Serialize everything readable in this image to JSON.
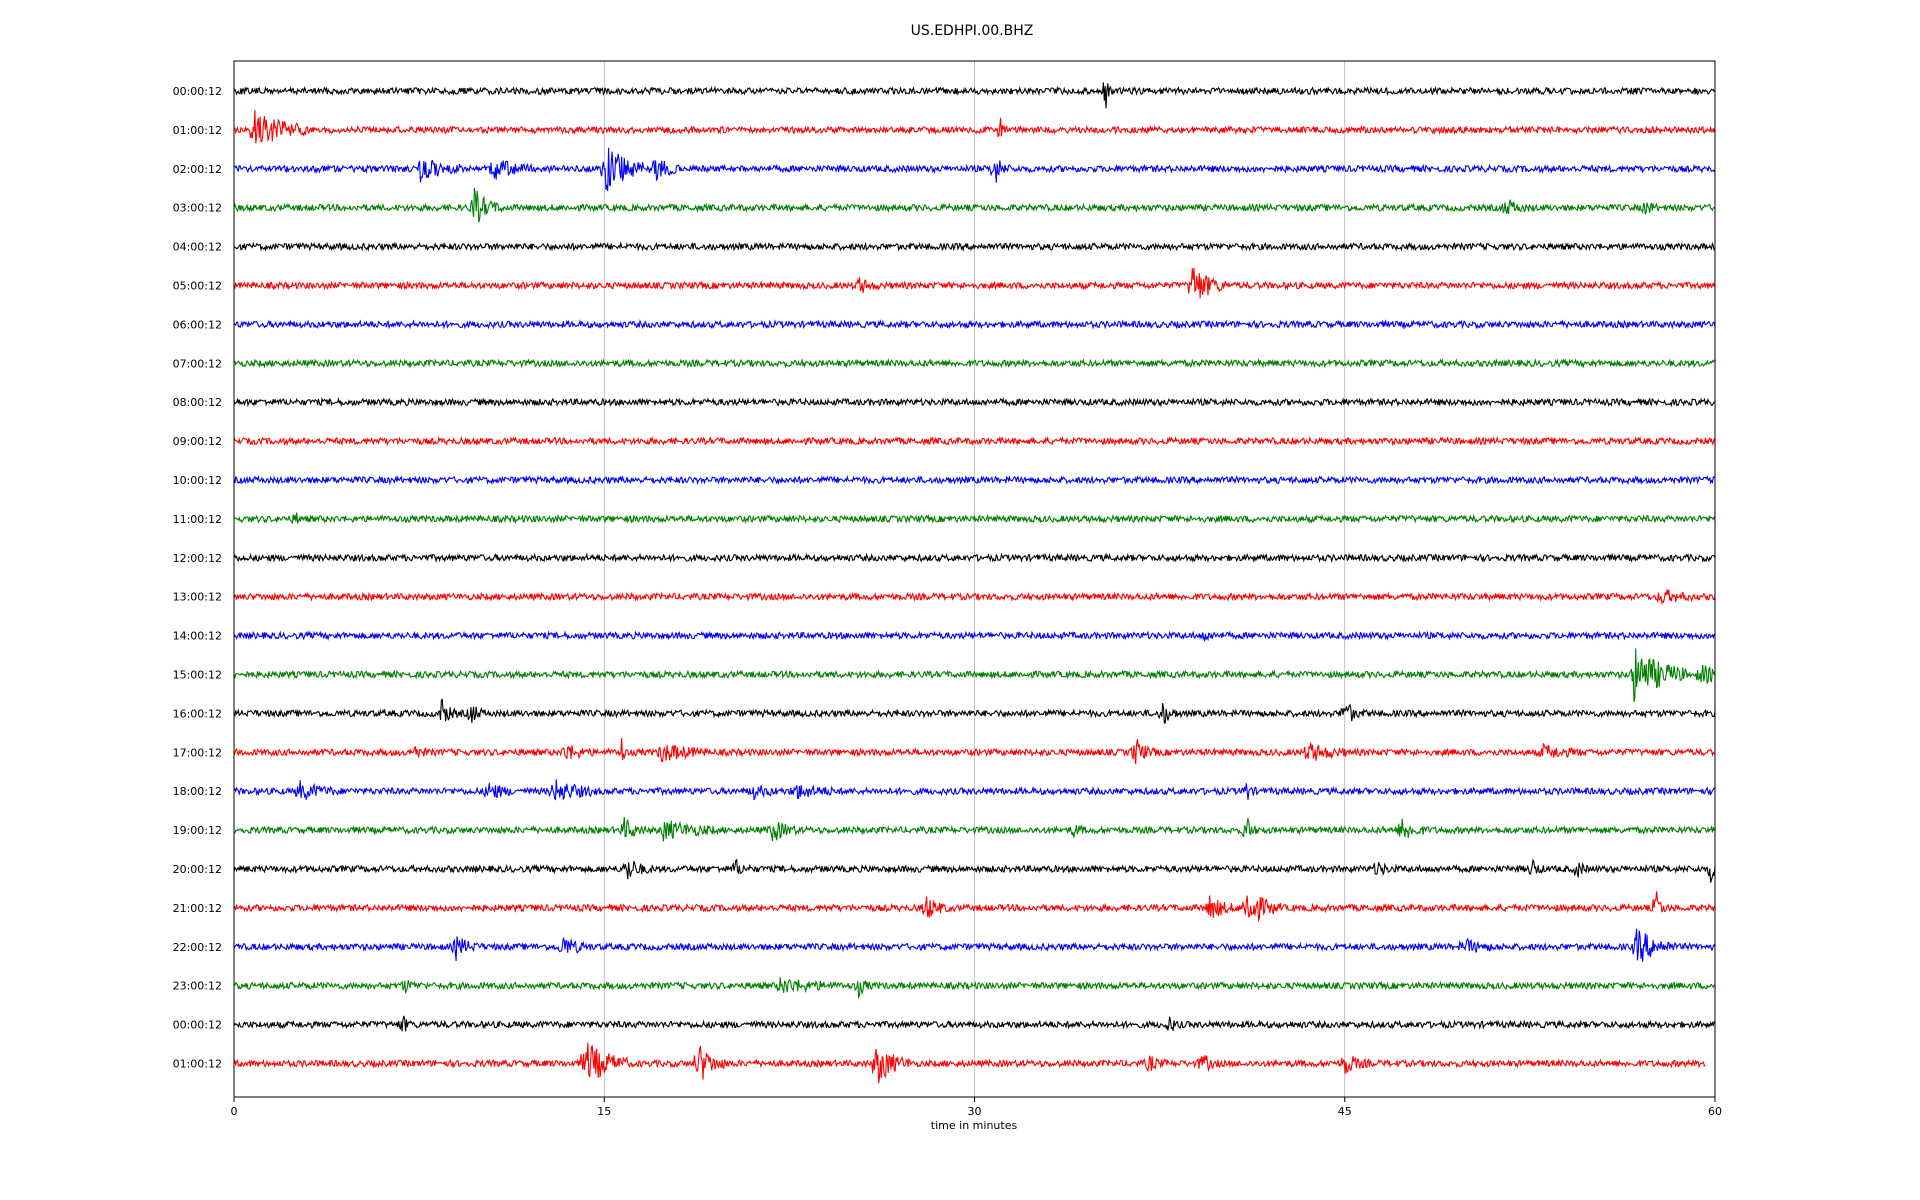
{
  "chart_data": {
    "type": "line",
    "title": "US.EDHPI.00.BHZ",
    "xlabel": "time in minutes",
    "xlim": [
      0,
      60
    ],
    "x_ticks": [
      0,
      15,
      30,
      45,
      60
    ],
    "x_tick_labels": [
      "0",
      "15",
      "30",
      "45",
      "60"
    ],
    "grid": "vertical",
    "colors": [
      "#000000",
      "#ff0000",
      "#0000ff",
      "#008000"
    ],
    "row_labels": [
      "00:00:12",
      "01:00:12",
      "02:00:12",
      "03:00:12",
      "04:00:12",
      "05:00:12",
      "06:00:12",
      "07:00:12",
      "08:00:12",
      "09:00:12",
      "10:00:12",
      "11:00:12",
      "12:00:12",
      "13:00:12",
      "14:00:12",
      "15:00:12",
      "16:00:12",
      "17:00:12",
      "18:00:12",
      "19:00:12",
      "20:00:12",
      "21:00:12",
      "22:00:12",
      "23:00:12",
      "00:00:12",
      "01:00:12"
    ],
    "trace_end_minutes": [
      60,
      60,
      60,
      60,
      60,
      60,
      60,
      60,
      60,
      60,
      60,
      60,
      60,
      60,
      60,
      60,
      60,
      60,
      60,
      60,
      60,
      60,
      60,
      60,
      60,
      59.6
    ],
    "events": [
      [
        [
          35.3,
          1.0,
          0.1
        ]
      ],
      [
        [
          0.8,
          0.8,
          1.5
        ],
        [
          31.0,
          1.0,
          0.1
        ]
      ],
      [
        [
          7.5,
          0.5,
          1.2
        ],
        [
          10.5,
          0.5,
          1.0
        ],
        [
          15.0,
          1.0,
          1.5
        ],
        [
          17.0,
          0.6,
          0.6
        ],
        [
          30.8,
          0.8,
          0.3
        ]
      ],
      [
        [
          9.7,
          0.9,
          0.6
        ],
        [
          51.5,
          0.4,
          0.5
        ],
        [
          57.2,
          0.5,
          0.2
        ]
      ],
      [],
      [
        [
          25.3,
          0.4,
          0.4
        ],
        [
          38.8,
          1.0,
          0.8
        ]
      ],
      [],
      [],
      [],
      [],
      [],
      [
        [
          2.5,
          0.3,
          0.1
        ]
      ],
      [],
      [
        [
          57.8,
          0.3,
          0.8
        ]
      ],
      [
        [
          39.3,
          0.2,
          0.3
        ]
      ],
      [
        [
          56.7,
          1.2,
          1.5
        ],
        [
          59.4,
          0.4,
          0.8
        ]
      ],
      [
        [
          8.4,
          0.7,
          0.3
        ],
        [
          9.6,
          0.5,
          0.3
        ],
        [
          37.6,
          0.6,
          0.3
        ],
        [
          45.0,
          0.8,
          0.3
        ]
      ],
      [
        [
          7.3,
          0.3,
          0.3
        ],
        [
          13.4,
          0.4,
          0.6
        ],
        [
          15.7,
          0.7,
          0.1
        ],
        [
          17.3,
          0.4,
          1.2
        ],
        [
          36.5,
          0.7,
          0.4
        ],
        [
          43.5,
          0.4,
          1.0
        ],
        [
          53.0,
          0.3,
          1.0
        ]
      ],
      [
        [
          2.6,
          0.4,
          1.0
        ],
        [
          10.3,
          0.4,
          0.6
        ],
        [
          12.9,
          0.5,
          1.2
        ],
        [
          21.0,
          0.3,
          0.6
        ],
        [
          22.7,
          0.3,
          1.2
        ],
        [
          41.0,
          0.5,
          0.2
        ]
      ],
      [
        [
          15.8,
          0.5,
          0.5
        ],
        [
          17.4,
          0.4,
          1.5
        ],
        [
          21.8,
          0.5,
          0.6
        ],
        [
          34.0,
          0.3,
          0.3
        ],
        [
          41.0,
          0.8,
          0.2
        ],
        [
          47.3,
          0.6,
          0.5
        ]
      ],
      [
        [
          15.9,
          0.6,
          0.5
        ],
        [
          20.3,
          0.4,
          0.3
        ],
        [
          46.3,
          0.4,
          0.3
        ],
        [
          52.6,
          0.5,
          0.2
        ],
        [
          54.4,
          0.5,
          0.2
        ],
        [
          59.8,
          0.6,
          0.3
        ]
      ],
      [
        [
          28.0,
          0.6,
          0.5
        ],
        [
          39.5,
          0.6,
          0.6
        ],
        [
          41.0,
          1.0,
          0.8
        ],
        [
          57.6,
          0.9,
          0.2
        ]
      ],
      [
        [
          9.0,
          0.5,
          0.5
        ],
        [
          13.3,
          0.5,
          0.6
        ],
        [
          49.8,
          0.3,
          0.8
        ],
        [
          56.8,
          0.8,
          1.0
        ]
      ],
      [
        [
          6.9,
          0.3,
          0.3
        ],
        [
          22.1,
          0.3,
          1.6
        ],
        [
          25.3,
          0.4,
          0.3
        ]
      ],
      [
        [
          6.8,
          0.5,
          0.2
        ],
        [
          37.9,
          0.4,
          0.2
        ]
      ],
      [
        [
          14.2,
          1.0,
          1.2
        ],
        [
          18.8,
          1.0,
          0.6
        ],
        [
          26.0,
          1.0,
          0.8
        ],
        [
          37.0,
          0.4,
          0.4
        ],
        [
          39.2,
          0.6,
          0.3
        ],
        [
          45.0,
          0.5,
          0.5
        ]
      ]
    ]
  }
}
